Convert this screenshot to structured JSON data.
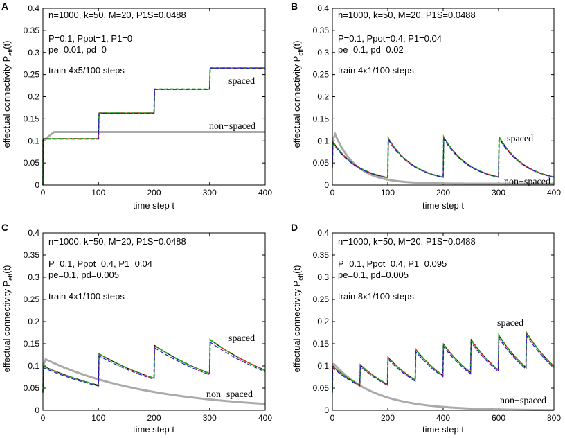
{
  "figure": {
    "description_title": "Effectual connectivity under spaced vs non-spaced training"
  },
  "colors": {
    "non_spaced": "#aaaaaa",
    "black": "#000000",
    "red": "#e02020",
    "green": "#20b020",
    "blue": "#2020d0",
    "magenta": "#c020c0"
  },
  "chart_data": [
    {
      "type": "line",
      "panel": "A",
      "xlabel": "time step t",
      "ylabel_main": "effectual connectivity P",
      "ylabel_sub": "eff",
      "ylabel_tail": "(t)",
      "xlim": [
        0,
        400
      ],
      "ylim": [
        0,
        0.4
      ],
      "xticks": [
        "0",
        "100",
        "200",
        "300",
        "400"
      ],
      "yticks": [
        "0",
        "0.05",
        "0.1",
        "0.15",
        "0.2",
        "0.25",
        "0.3",
        "0.35",
        "0.4"
      ],
      "params_line1": "n=1000, k=50, M=20, P1S=0.0488",
      "params_line2": "P=0.1, Ppot=1, P1=0",
      "params_line3": "pe=0.01, pd=0",
      "train": "train 4x5/100 steps",
      "label_spaced": "spaced",
      "label_non_spaced": "non−spaced",
      "model": {
        "kind": "step",
        "base": 0.1,
        "levels": [
          0.105,
          0.163,
          0.217,
          0.265
        ],
        "t_events": [
          0,
          100,
          200,
          300
        ],
        "t_max": 400,
        "ns_plateau": 0.12,
        "ns_rise_end": 20
      }
    },
    {
      "type": "line",
      "panel": "B",
      "xlabel": "time step t",
      "ylabel_main": "effectual connectivity P",
      "ylabel_sub": "eff",
      "ylabel_tail": "(t)",
      "xlim": [
        0,
        400
      ],
      "ylim": [
        0,
        0.4
      ],
      "xticks": [
        "0",
        "100",
        "200",
        "300",
        "400"
      ],
      "yticks": [
        "0",
        "0.05",
        "0.1",
        "0.15",
        "0.2",
        "0.25",
        "0.3",
        "0.35",
        "0.4"
      ],
      "params_line1": "n=1000, k=50, M=20, P1S=0.0488",
      "params_line2": "P=0.1, Ppot=0.4, P1=0.04",
      "params_line3": "pe=0.1, pd=0.02",
      "train": "train 4x1/100 steps",
      "label_spaced": "spaced",
      "label_non_spaced": "non−spaced",
      "model": {
        "kind": "decay",
        "start": 0.1,
        "peaks": [
          0.1,
          0.108,
          0.111,
          0.111
        ],
        "t_events": [
          0,
          100,
          200,
          300
        ],
        "t_max": 400,
        "tau": 48,
        "floor": 0.005,
        "ns_peak": 0.115,
        "ns_peak_t": 5,
        "ns_tau": 38,
        "ns_floor": 0.003
      }
    },
    {
      "type": "line",
      "panel": "C",
      "xlabel": "time step t",
      "ylabel_main": "effectual connectivity P",
      "ylabel_sub": "eff",
      "ylabel_tail": "(t)",
      "xlim": [
        0,
        400
      ],
      "ylim": [
        0,
        0.4
      ],
      "xticks": [
        "0",
        "100",
        "200",
        "300",
        "400"
      ],
      "yticks": [
        "0",
        "0.05",
        "0.1",
        "0.15",
        "0.2",
        "0.25",
        "0.3",
        "0.35",
        "0.4"
      ],
      "params_line1": "n=1000, k=50, M=20, P1S=0.0488",
      "params_line2": "P=0.1, Ppot=0.4, P1=0.04",
      "params_line3": "pe=0.1, pd=0.005",
      "train": "train 4x1/100 steps",
      "label_spaced": "spaced",
      "label_non_spaced": "non−spaced",
      "model": {
        "kind": "decay",
        "start": 0.1,
        "peaks": [
          0.1,
          0.128,
          0.147,
          0.16
        ],
        "t_events": [
          0,
          100,
          200,
          300
        ],
        "t_max": 400,
        "tau": 175,
        "floor": 0.0,
        "ns_peak": 0.115,
        "ns_peak_t": 5,
        "ns_tau": 190,
        "ns_floor": 0.0
      }
    },
    {
      "type": "line",
      "panel": "D",
      "xlabel": "time step t",
      "ylabel_main": "effectual connectivity P",
      "ylabel_sub": "eff",
      "ylabel_tail": "(t)",
      "xlim": [
        0,
        800
      ],
      "ylim": [
        0,
        0.4
      ],
      "xticks": [
        "0",
        "200",
        "400",
        "600",
        "800"
      ],
      "yticks": [
        "0",
        "0.05",
        "0.1",
        "0.15",
        "0.2",
        "0.25",
        "0.3",
        "0.35",
        "0.4"
      ],
      "params_line1": "n=1000, k=50, M=20, P1S=0.0488",
      "params_line2": "P=0.1, Ppot=0.4, P1=0.095",
      "params_line3": "pe=0.1, pd=0.005",
      "train": "train 8x1/100 steps",
      "label_spaced": "spaced",
      "label_non_spaced": "non−spaced",
      "model": {
        "kind": "decay",
        "start": 0.1,
        "peaks": [
          0.1,
          0.103,
          0.12,
          0.138,
          0.15,
          0.16,
          0.17,
          0.176
        ],
        "t_events": [
          0,
          100,
          200,
          300,
          400,
          500,
          600,
          700
        ],
        "t_max": 800,
        "tau": 175,
        "floor": 0.0,
        "ns_peak": 0.105,
        "ns_peak_t": 5,
        "ns_tau": 150,
        "ns_floor": 0.0
      }
    }
  ]
}
